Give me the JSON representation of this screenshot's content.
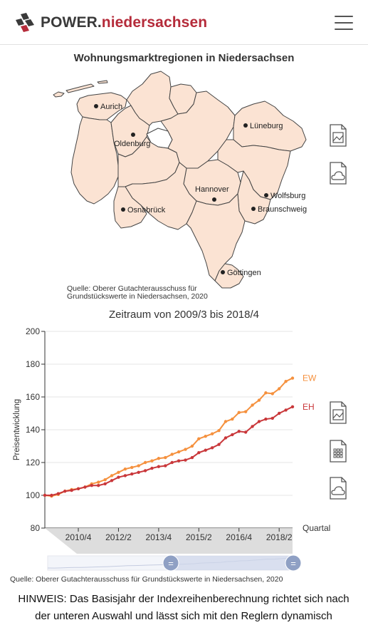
{
  "header": {
    "brand_main": "POWER.",
    "brand_accent": "niedersachsen",
    "logo_icon": "power-logo-icon",
    "menu_icon": "hamburger-menu-icon"
  },
  "map": {
    "title": "Wohnungsmarktregionen in Niedersachsen",
    "source_line1": "Quelle: Oberer Gutachterausschuss für",
    "source_line2": "Grundstückswerte in Niedersachsen, 2020",
    "fill_color": "#fbe3d3",
    "cities": [
      "Aurich",
      "Oldenburg",
      "Lüneburg",
      "Hannover",
      "Wolfsburg",
      "Osnabrück",
      "Braunschweig",
      "Göttingen"
    ],
    "icons": [
      "image-export-icon",
      "cloud-export-icon"
    ]
  },
  "chart_title": "Zeitraum von 2009/3 bis 2018/4",
  "chart_icons": [
    "image-export-icon",
    "table-export-icon",
    "cloud-export-icon"
  ],
  "chart_data": {
    "type": "line",
    "title": "Zeitraum von 2009/3 bis 2018/4",
    "xlabel": "Quartal",
    "ylabel": "Preisentwicklung",
    "ylim": [
      80,
      200
    ],
    "yticks": [
      "80",
      "100",
      "120",
      "140",
      "160",
      "180",
      "200"
    ],
    "xticks": [
      "2010/4",
      "2012/2",
      "2013/4",
      "2015/2",
      "2016/4",
      "2018/2"
    ],
    "x": [
      "2009/3",
      "2009/4",
      "2010/1",
      "2010/2",
      "2010/3",
      "2010/4",
      "2011/1",
      "2011/2",
      "2011/3",
      "2011/4",
      "2012/1",
      "2012/2",
      "2012/3",
      "2012/4",
      "2013/1",
      "2013/2",
      "2013/3",
      "2013/4",
      "2014/1",
      "2014/2",
      "2014/3",
      "2014/4",
      "2015/1",
      "2015/2",
      "2015/3",
      "2015/4",
      "2016/1",
      "2016/2",
      "2016/3",
      "2016/4",
      "2017/1",
      "2017/2",
      "2017/3",
      "2017/4",
      "2018/1",
      "2018/2",
      "2018/3",
      "2018/4"
    ],
    "grid": "horizontal",
    "legend": "right, at line ends",
    "series": [
      {
        "name": "EW",
        "color": "#f5913e",
        "values": [
          100,
          99.5,
          100.5,
          102.5,
          103.5,
          104,
          105,
          107,
          108,
          109.5,
          112,
          114,
          116,
          117,
          118,
          120,
          121,
          122.5,
          123,
          125,
          126.5,
          128,
          130,
          134.5,
          136,
          137.5,
          139.5,
          145,
          146.5,
          150.5,
          151,
          155,
          158,
          162.5,
          162,
          165,
          169.5,
          171.5
        ]
      },
      {
        "name": "EH",
        "color": "#c9373a",
        "values": [
          100,
          100,
          101,
          102.5,
          103,
          104,
          105,
          106,
          106,
          107,
          109,
          111,
          112,
          113,
          114,
          115,
          116.5,
          117.5,
          118,
          120,
          121,
          121.5,
          123,
          126,
          127.5,
          129,
          131,
          135,
          137,
          139,
          138.5,
          142,
          145,
          146.5,
          147,
          150,
          152,
          154
        ]
      }
    ]
  },
  "navigator": {
    "start_label": "=",
    "end_label": "="
  },
  "chart_source": "Quelle: Oberer Gutachterausschuss für Grundstückswerte in Niedersachsen, 2020",
  "hinweis_line1": "HINWEIS: Das Basisjahr der Indexreihenberechnung richtet sich nach",
  "hinweis_line2": "der unteren Auswahl und lässt sich mit den Reglern dynamisch"
}
